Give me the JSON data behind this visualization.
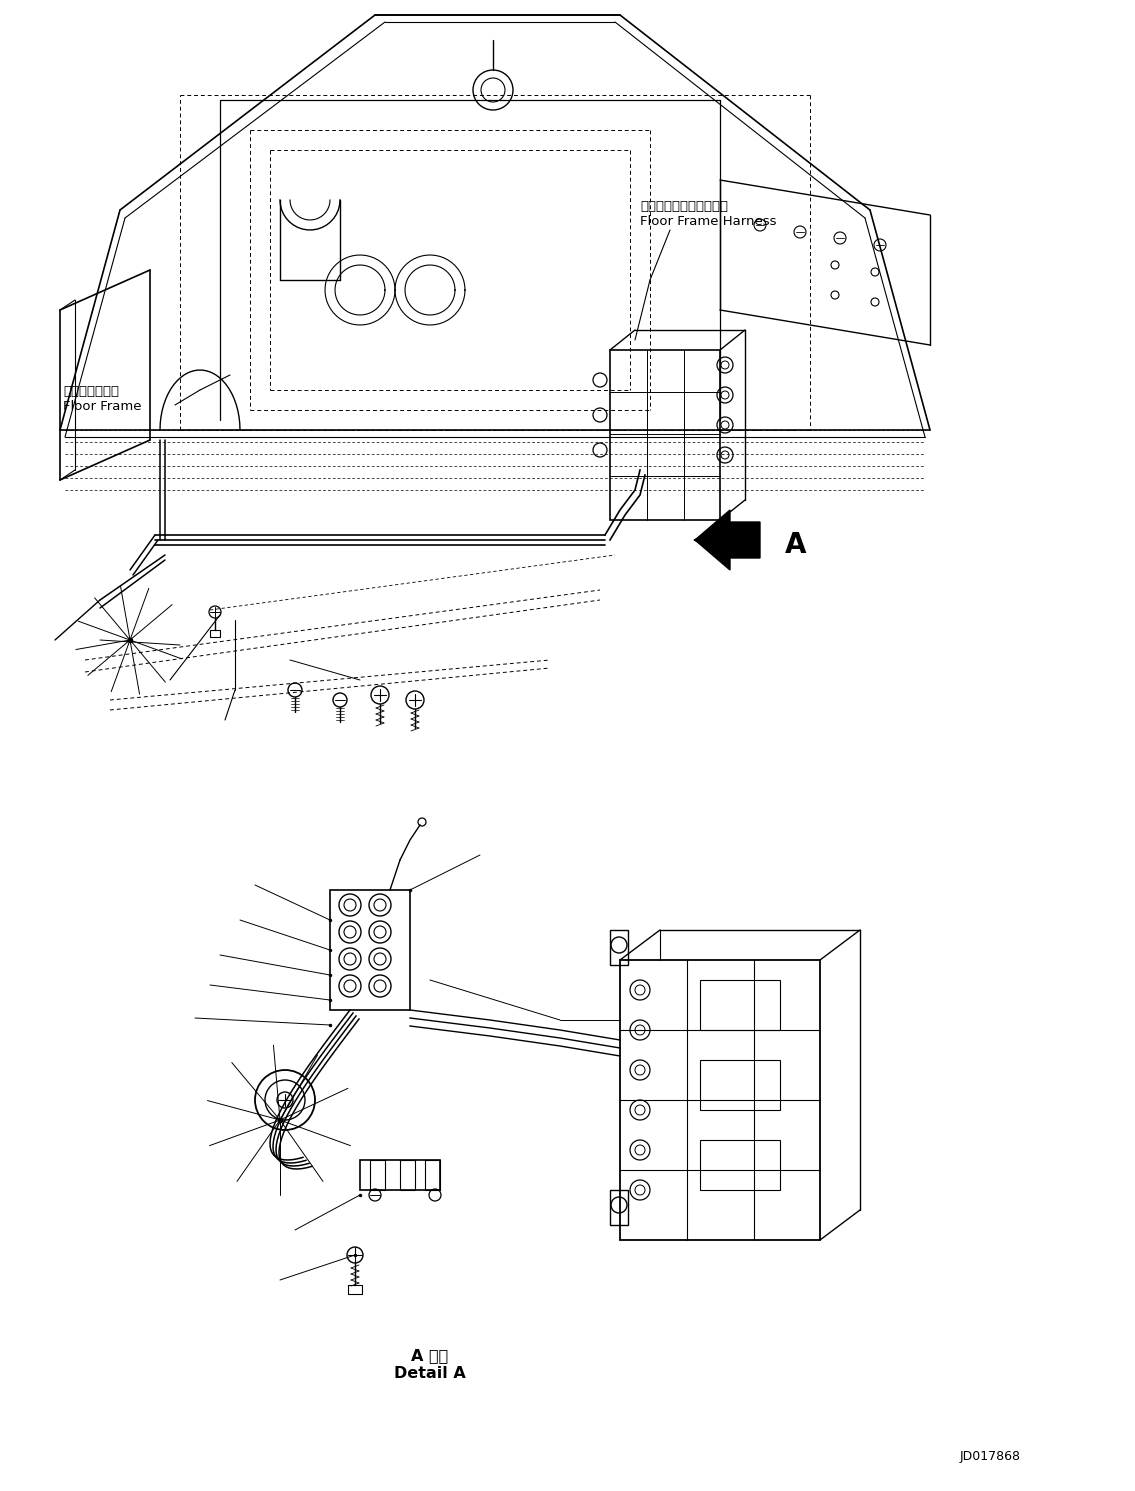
{
  "background_color": "#ffffff",
  "line_color": "#000000",
  "label_floor_frame_jp": "フロアフレーム",
  "label_floor_frame_en": "Floor Frame",
  "label_harness_jp": "フロアフレームハーネス",
  "label_harness_en": "Floor Frame Harness",
  "label_detail_jp": "A 詳細",
  "label_detail_en": "Detail A",
  "label_arrow_A": "A",
  "label_doc": "JD017868",
  "fig_width": 11.35,
  "fig_height": 14.91,
  "dpi": 100
}
